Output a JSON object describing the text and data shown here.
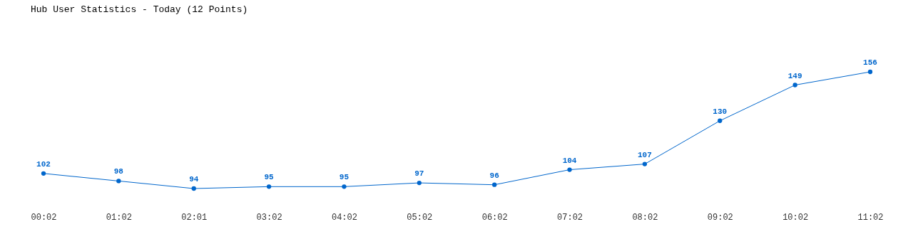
{
  "chart_data": {
    "type": "line",
    "title": "Hub User Statistics - Today (12 Points)",
    "categories": [
      "00:02",
      "01:02",
      "02:01",
      "03:02",
      "04:02",
      "05:02",
      "06:02",
      "07:02",
      "08:02",
      "09:02",
      "10:02",
      "11:02"
    ],
    "values": [
      102,
      98,
      94,
      95,
      95,
      97,
      96,
      104,
      107,
      130,
      149,
      156
    ],
    "color": "#0066cc",
    "marker": "circle",
    "data_labels": true
  }
}
